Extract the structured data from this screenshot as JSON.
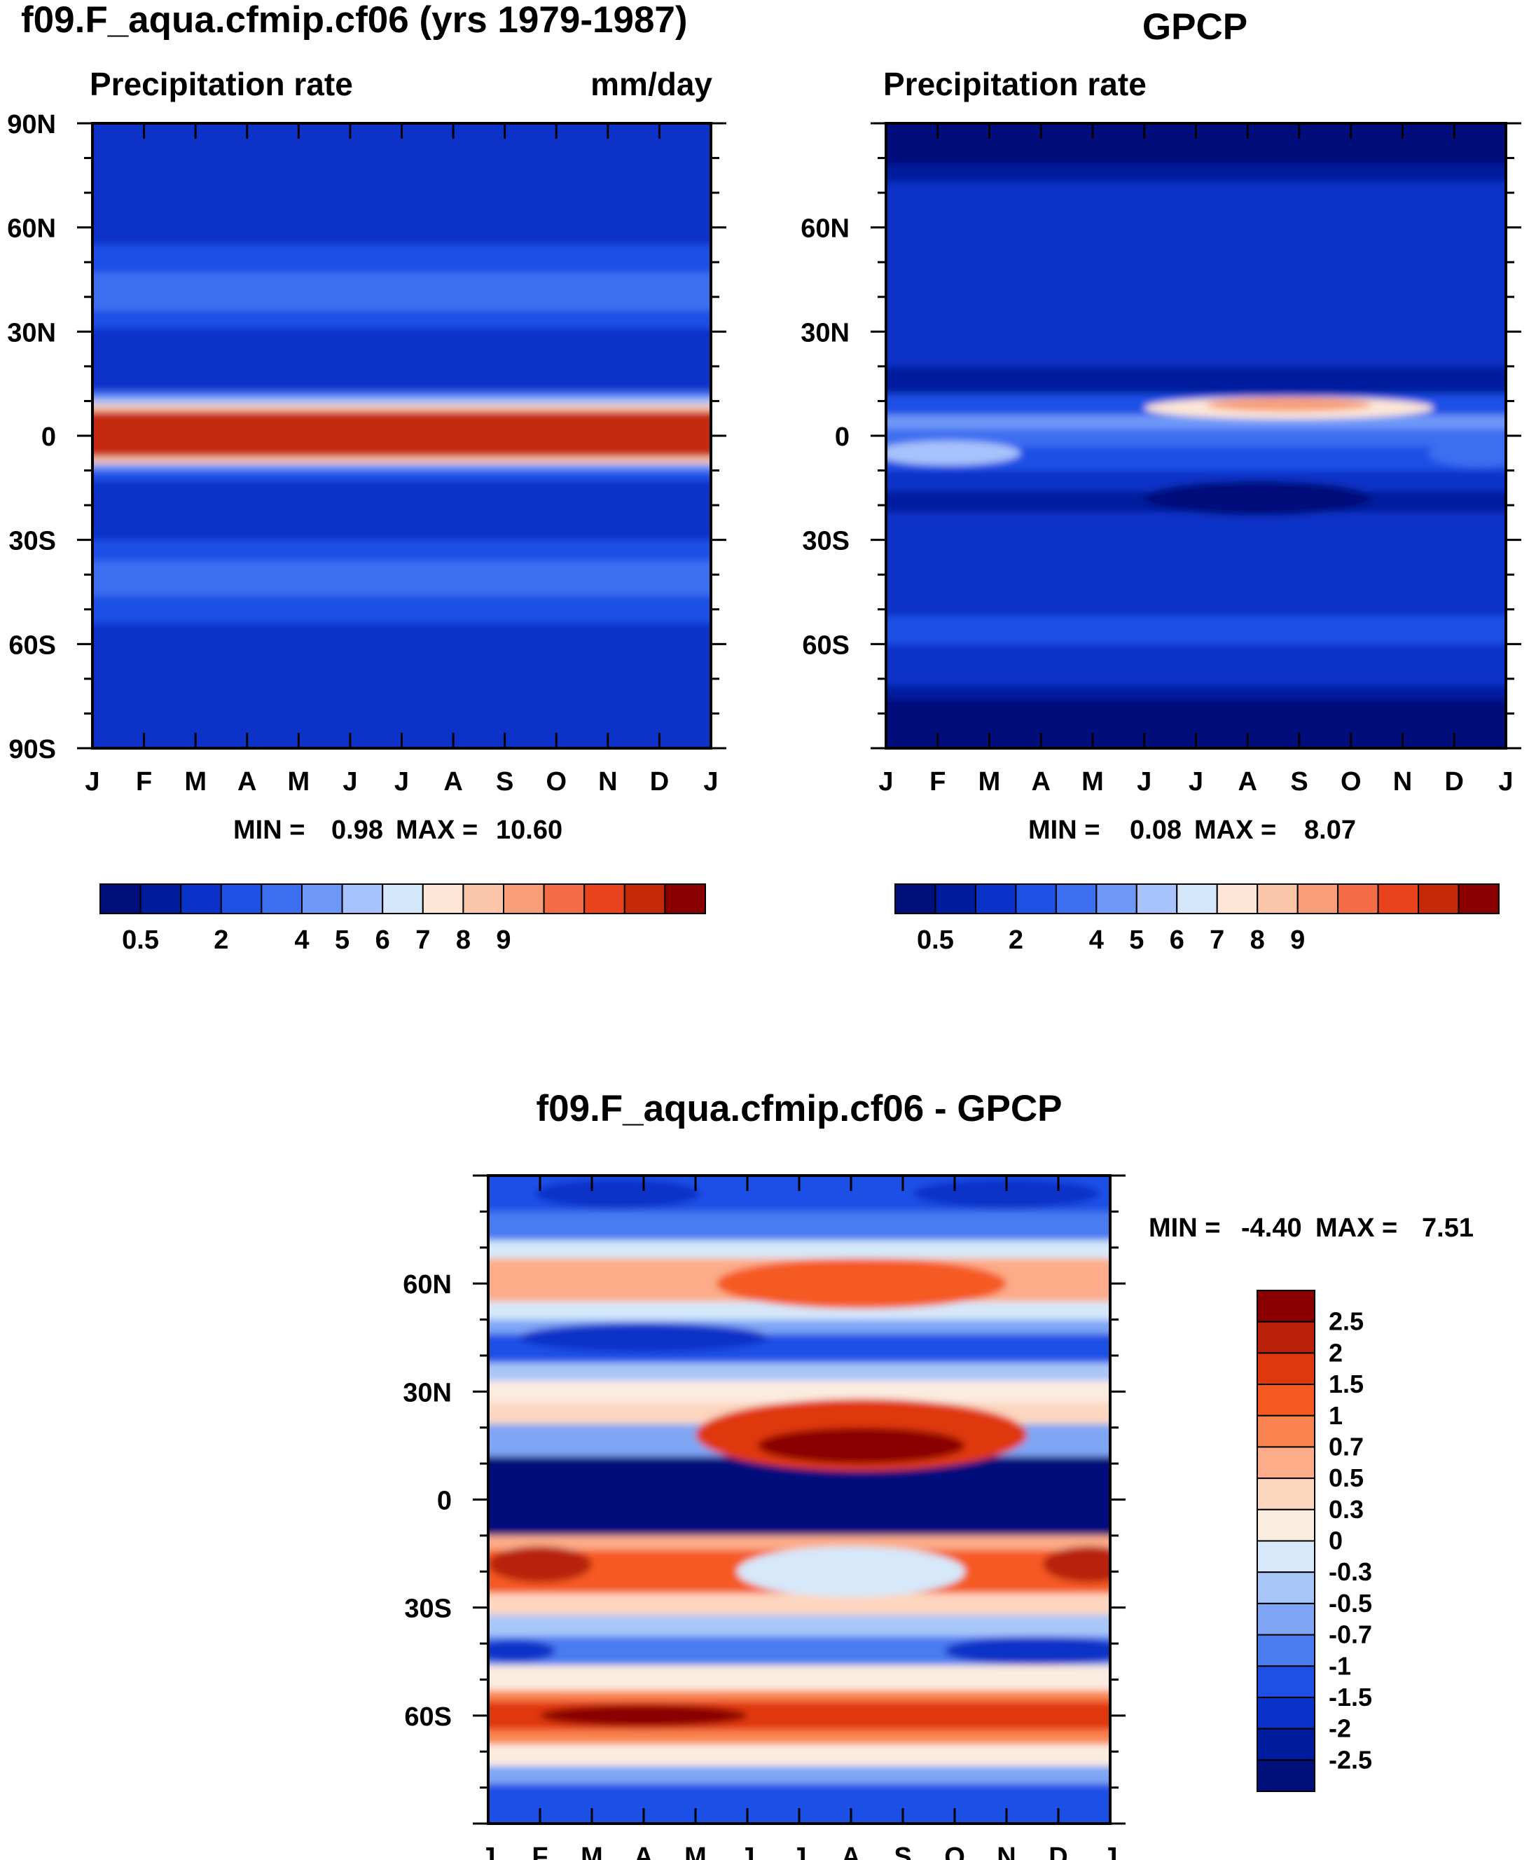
{
  "chart_data": [
    {
      "type": "heatmap",
      "id": "model",
      "title": "f09.F_aqua.cfmip.cf06 (yrs 1979-1987)",
      "subtitle": "Precipitation rate",
      "units": "mm/day",
      "x_ticks": [
        "J",
        "F",
        "M",
        "A",
        "M",
        "J",
        "J",
        "A",
        "S",
        "O",
        "N",
        "D",
        "J"
      ],
      "y_ticks": [
        "90N",
        "60N",
        "30N",
        "0",
        "30S",
        "60S",
        "90S"
      ],
      "stats": {
        "prefix_min": "MIN =",
        "min": "0.98",
        "prefix_max": "MAX =",
        "max": "10.60"
      },
      "levels": [
        "0.5",
        "2",
        "4",
        "5",
        "6",
        "7",
        "8",
        "9"
      ],
      "ylim": [
        -90,
        90
      ],
      "bands": [
        {
          "from": 90,
          "to": 55,
          "level": 2
        },
        {
          "from": 55,
          "to": 47,
          "level": 3
        },
        {
          "from": 47,
          "to": 36,
          "level": 4
        },
        {
          "from": 36,
          "to": 31,
          "level": 3
        },
        {
          "from": 31,
          "to": 13,
          "level": 2
        },
        {
          "from": 13,
          "to": 11,
          "level": 4
        },
        {
          "from": 11,
          "to": 9,
          "level": 6
        },
        {
          "from": 9,
          "to": 7,
          "level": 9
        },
        {
          "from": 7,
          "to": -6,
          "level": 13
        },
        {
          "from": -6,
          "to": -8,
          "level": 9
        },
        {
          "from": -8,
          "to": -10,
          "level": 5
        },
        {
          "from": -10,
          "to": -13,
          "level": 3
        },
        {
          "from": -13,
          "to": -30,
          "level": 2
        },
        {
          "from": -30,
          "to": -36,
          "level": 3
        },
        {
          "from": -36,
          "to": -46,
          "level": 4
        },
        {
          "from": -46,
          "to": -54,
          "level": 3
        },
        {
          "from": -54,
          "to": -90,
          "level": 2
        }
      ]
    },
    {
      "type": "heatmap",
      "id": "obs",
      "title": "GPCP",
      "subtitle": "Precipitation rate",
      "x_ticks": [
        "J",
        "F",
        "M",
        "A",
        "M",
        "J",
        "J",
        "A",
        "S",
        "O",
        "N",
        "D",
        "J"
      ],
      "y_ticks": [
        "60N",
        "30N",
        "0",
        "30S",
        "60S"
      ],
      "stats": {
        "prefix_min": "MIN =",
        "min": "0.08",
        "prefix_max": "MAX =",
        "max": "8.07"
      },
      "levels": [
        "0.5",
        "2",
        "4",
        "5",
        "6",
        "7",
        "8",
        "9"
      ],
      "ylim": [
        -90,
        90
      ],
      "bands": [
        {
          "from": 90,
          "to": 78,
          "level": 0
        },
        {
          "from": 78,
          "to": 73,
          "level": 1
        },
        {
          "from": 73,
          "to": 20,
          "level": 2
        },
        {
          "from": 20,
          "to": 12,
          "level": 1
        },
        {
          "from": 12,
          "to": 6,
          "level": 3
        },
        {
          "from": 6,
          "to": 2,
          "level": 5
        },
        {
          "from": 2,
          "to": -3,
          "level": 4
        },
        {
          "from": -3,
          "to": -10,
          "level": 3
        },
        {
          "from": -10,
          "to": -16,
          "level": 2
        },
        {
          "from": -16,
          "to": -22,
          "level": 1
        },
        {
          "from": -22,
          "to": -52,
          "level": 2
        },
        {
          "from": -52,
          "to": -60,
          "level": 3
        },
        {
          "from": -60,
          "to": -72,
          "level": 2
        },
        {
          "from": -72,
          "to": -76,
          "level": 1
        },
        {
          "from": -76,
          "to": -90,
          "level": 0
        }
      ],
      "blobs": [
        {
          "x": 7.8,
          "lat": 8,
          "dx": 2.8,
          "dlat": 3.2,
          "level": 8
        },
        {
          "x": 7.8,
          "lat": 9,
          "dx": 1.6,
          "dlat": 2.0,
          "level": 10
        },
        {
          "x": 1.2,
          "lat": -5,
          "dx": 1.4,
          "dlat": 3.5,
          "level": 6
        },
        {
          "x": 7.2,
          "lat": -18,
          "dx": 2.2,
          "dlat": 5,
          "level": 0
        },
        {
          "x": 11.5,
          "lat": -5,
          "dx": 1.0,
          "dlat": 4,
          "level": 4
        }
      ]
    },
    {
      "type": "heatmap",
      "id": "diff",
      "title": "f09.F_aqua.cfmip.cf06 - GPCP",
      "x_ticks": [
        "J",
        "F",
        "M",
        "A",
        "M",
        "J",
        "J",
        "A",
        "S",
        "O",
        "N",
        "D",
        "J"
      ],
      "y_ticks": [
        "60N",
        "30N",
        "0",
        "30S",
        "60S"
      ],
      "stats": {
        "prefix_min": "MIN =",
        "min": "-4.40",
        "prefix_max": "MAX =",
        "max": "7.51"
      },
      "levels": [
        "2.5",
        "2",
        "1.5",
        "1",
        "0.7",
        "0.5",
        "0.3",
        "0",
        "-0.3",
        "-0.5",
        "-0.7",
        "-1",
        "-1.5",
        "-2",
        "-2.5"
      ],
      "ylim": [
        -90,
        90
      ],
      "bands": [
        {
          "from": 90,
          "to": 80,
          "level": 12
        },
        {
          "from": 80,
          "to": 72,
          "level": 11
        },
        {
          "from": 72,
          "to": 67,
          "level": 8
        },
        {
          "from": 67,
          "to": 55,
          "level": 5
        },
        {
          "from": 55,
          "to": 50,
          "level": 8
        },
        {
          "from": 50,
          "to": 46,
          "level": 10
        },
        {
          "from": 46,
          "to": 38,
          "level": 12
        },
        {
          "from": 38,
          "to": 33,
          "level": 9
        },
        {
          "from": 33,
          "to": 27,
          "level": 7
        },
        {
          "from": 27,
          "to": 21,
          "level": 6
        },
        {
          "from": 21,
          "to": 12,
          "level": 10
        },
        {
          "from": 12,
          "to": -10,
          "level": 15
        },
        {
          "from": -10,
          "to": -14,
          "level": 5
        },
        {
          "from": -14,
          "to": -26,
          "level": 3
        },
        {
          "from": -26,
          "to": -32,
          "level": 6
        },
        {
          "from": -32,
          "to": -38,
          "level": 9
        },
        {
          "from": -38,
          "to": -46,
          "level": 11
        },
        {
          "from": -46,
          "to": -53,
          "level": 7
        },
        {
          "from": -53,
          "to": -56,
          "level": 4
        },
        {
          "from": -56,
          "to": -64,
          "level": 2
        },
        {
          "from": -64,
          "to": -68,
          "level": 4
        },
        {
          "from": -68,
          "to": -74,
          "level": 7
        },
        {
          "from": -74,
          "to": -79,
          "level": 10
        },
        {
          "from": -79,
          "to": -90,
          "level": 12
        }
      ],
      "blobs": [
        {
          "x": 7.2,
          "lat": 18,
          "dx": 3.2,
          "dlat": 10,
          "level": 2
        },
        {
          "x": 7.2,
          "lat": 15,
          "dx": 2.0,
          "dlat": 5,
          "level": 0
        },
        {
          "x": 7.2,
          "lat": 60,
          "dx": 2.8,
          "dlat": 7,
          "level": 3
        },
        {
          "x": 3.0,
          "lat": 45,
          "dx": 2.4,
          "dlat": 4,
          "level": 13
        },
        {
          "x": 2.5,
          "lat": 85,
          "dx": 1.6,
          "dlat": 4,
          "level": 13
        },
        {
          "x": 10.0,
          "lat": 85,
          "dx": 1.8,
          "dlat": 4,
          "level": 13
        },
        {
          "x": 1.0,
          "lat": -18,
          "dx": 1.0,
          "dlat": 5,
          "level": 1
        },
        {
          "x": 11.6,
          "lat": -18,
          "dx": 0.9,
          "dlat": 5,
          "level": 1
        },
        {
          "x": 7.0,
          "lat": -20,
          "dx": 2.2,
          "dlat": 7,
          "level": 8
        },
        {
          "x": 10.6,
          "lat": -42,
          "dx": 1.8,
          "dlat": 4,
          "level": 13
        },
        {
          "x": 0.5,
          "lat": -42,
          "dx": 0.8,
          "dlat": 3,
          "level": 13
        },
        {
          "x": 3.0,
          "lat": -60,
          "dx": 2.0,
          "dlat": 3,
          "level": 0
        }
      ]
    }
  ],
  "colors": {
    "seq": [
      "#000f7a",
      "#001c9e",
      "#0a32c8",
      "#1e50e6",
      "#3c6ef0",
      "#6e98f8",
      "#a8c2fb",
      "#d4e6fa",
      "#fde6d6",
      "#fbc6aa",
      "#f79e78",
      "#f36c45",
      "#e8431c",
      "#c42a08",
      "#8a0000"
    ],
    "diff": [
      "#8a0000",
      "#b82008",
      "#e0380e",
      "#f55a22",
      "#fa8450",
      "#fcac88",
      "#fdd6c0",
      "#fbece0",
      "#d6e8fa",
      "#a9c6f8",
      "#7ea6f5",
      "#4a7cf0",
      "#1e50e6",
      "#0a32c8",
      "#001c9e",
      "#000f7a",
      "#8a0000"
    ]
  }
}
